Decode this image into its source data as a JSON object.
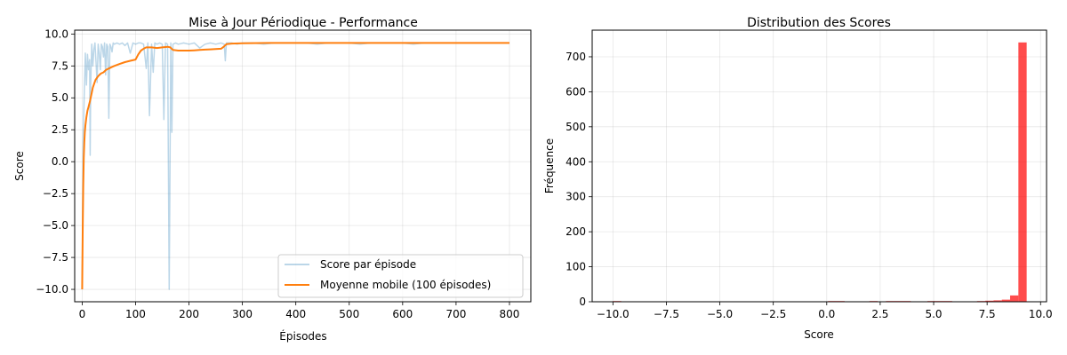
{
  "chart_data": [
    {
      "type": "line",
      "title": "Mise à Jour Périodique - Performance",
      "xlabel": "Épisodes",
      "ylabel": "Score",
      "xlim": [
        -14,
        840
      ],
      "ylim": [
        -10.97,
        10.3
      ],
      "xticks": [
        0,
        100,
        200,
        300,
        400,
        500,
        600,
        700,
        800
      ],
      "yticks": [
        -10.0,
        -7.5,
        -5.0,
        -2.5,
        0.0,
        2.5,
        5.0,
        7.5,
        10.0
      ],
      "ytick_labels": [
        "−10.0",
        "−7.5",
        "−5.0",
        "−2.5",
        "0.0",
        "2.5",
        "5.0",
        "7.5",
        "10.0"
      ],
      "grid": true,
      "legend": "lower-right",
      "series": [
        {
          "name": "Score par épisode",
          "color": "#1f77b4",
          "alpha": 0.3,
          "style": "raw",
          "x": [
            0,
            2,
            4,
            6,
            8,
            10,
            12,
            14,
            15,
            16,
            18,
            20,
            22,
            24,
            26,
            28,
            30,
            32,
            34,
            36,
            38,
            40,
            42,
            44,
            46,
            48,
            50,
            52,
            54,
            56,
            58,
            60,
            65,
            70,
            75,
            80,
            85,
            90,
            95,
            100,
            105,
            110,
            115,
            120,
            123,
            126,
            130,
            133,
            136,
            140,
            145,
            150,
            153,
            156,
            160,
            163,
            166,
            168,
            170,
            175,
            180,
            190,
            200,
            210,
            220,
            230,
            240,
            250,
            260,
            266,
            268,
            270,
            280,
            290,
            300,
            320,
            340,
            360,
            380,
            400,
            420,
            440,
            460,
            480,
            500,
            520,
            540,
            560,
            580,
            600,
            620,
            640,
            660,
            680,
            700,
            720,
            740,
            760,
            780,
            800
          ],
          "y": [
            -10.0,
            2.0,
            5.5,
            8.5,
            6.0,
            8.4,
            7.2,
            8.0,
            0.5,
            6.0,
            9.2,
            7.5,
            8.8,
            9.3,
            7.8,
            6.2,
            9.2,
            8.5,
            7.2,
            9.2,
            9.0,
            8.2,
            9.3,
            6.8,
            9.2,
            9.0,
            3.4,
            9.2,
            9.0,
            8.6,
            9.3,
            9.2,
            9.3,
            9.2,
            9.3,
            9.1,
            9.3,
            8.5,
            9.3,
            9.2,
            9.3,
            9.3,
            9.2,
            7.3,
            9.3,
            3.6,
            9.2,
            7.0,
            9.3,
            9.2,
            9.3,
            9.2,
            3.3,
            9.3,
            9.2,
            -10.0,
            9.3,
            2.3,
            9.2,
            9.3,
            9.2,
            9.3,
            9.2,
            9.3,
            8.9,
            9.2,
            9.3,
            9.2,
            9.3,
            9.2,
            7.9,
            9.3,
            9.3,
            9.2,
            9.3,
            9.3,
            9.2,
            9.3,
            9.3,
            9.3,
            9.3,
            9.2,
            9.3,
            9.3,
            9.3,
            9.2,
            9.3,
            9.3,
            9.3,
            9.3,
            9.2,
            9.3,
            9.3,
            9.3,
            9.3,
            9.3,
            9.3,
            9.3,
            9.3,
            9.3
          ]
        },
        {
          "name": "Moyenne mobile (100 épisodes)",
          "color": "#ff7f0e",
          "alpha": 1,
          "style": "smooth",
          "x": [
            0,
            1,
            2,
            3,
            4,
            5,
            6,
            8,
            10,
            12,
            15,
            18,
            20,
            25,
            30,
            35,
            40,
            45,
            50,
            55,
            60,
            70,
            80,
            90,
            100,
            105,
            110,
            115,
            120,
            130,
            140,
            150,
            160,
            165,
            170,
            180,
            190,
            200,
            210,
            220,
            230,
            240,
            250,
            260,
            265,
            270,
            280,
            300,
            350,
            400,
            500,
            600,
            700,
            800
          ],
          "y": [
            -10.0,
            -5.5,
            -2.0,
            0.3,
            1.5,
            2.3,
            2.8,
            3.5,
            4.0,
            4.3,
            4.8,
            5.4,
            5.8,
            6.4,
            6.7,
            6.9,
            7.0,
            7.2,
            7.3,
            7.4,
            7.5,
            7.65,
            7.8,
            7.9,
            8.0,
            8.4,
            8.7,
            8.85,
            8.95,
            8.95,
            8.9,
            8.95,
            9.0,
            8.95,
            8.75,
            8.7,
            8.7,
            8.7,
            8.72,
            8.75,
            8.78,
            8.8,
            8.82,
            8.85,
            9.0,
            9.2,
            9.25,
            9.28,
            9.3,
            9.3,
            9.3,
            9.3,
            9.3,
            9.3
          ]
        }
      ]
    },
    {
      "type": "bar",
      "subtype": "histogram",
      "title": "Distribution des Scores",
      "xlabel": "Score",
      "ylabel": "Fréquence",
      "xlim": [
        -10.97,
        10.28
      ],
      "ylim": [
        0,
        776
      ],
      "xticks": [
        -10.0,
        -7.5,
        -5.0,
        -2.5,
        0.0,
        2.5,
        5.0,
        7.5,
        10.0
      ],
      "xtick_labels": [
        "−10.0",
        "−7.5",
        "−5.0",
        "−2.5",
        "0.0",
        "2.5",
        "5.0",
        "7.5",
        "10.0"
      ],
      "yticks": [
        0,
        100,
        200,
        300,
        400,
        500,
        600,
        700
      ],
      "grid": true,
      "color": "#ff0000",
      "alpha": 0.7,
      "bin_edges": [
        -10.0,
        -9.613,
        -9.226,
        -8.839,
        -8.452,
        -8.065,
        -7.678,
        -7.291,
        -6.904,
        -6.517,
        -6.13,
        -5.743,
        -5.356,
        -4.969,
        -4.582,
        -4.195,
        -3.808,
        -3.421,
        -3.034,
        -2.647,
        -2.26,
        -1.873,
        -1.486,
        -1.099,
        -0.712,
        -0.325,
        0.062,
        0.449,
        0.836,
        1.223,
        1.61,
        1.997,
        2.384,
        2.771,
        3.158,
        3.545,
        3.932,
        4.319,
        4.706,
        5.093,
        5.48,
        5.867,
        6.254,
        6.641,
        7.028,
        7.415,
        7.802,
        8.189,
        8.576,
        8.963,
        9.35
      ],
      "counts": [
        2,
        0,
        0,
        0,
        0,
        0,
        0,
        0,
        0,
        0,
        0,
        0,
        0,
        0,
        0,
        0,
        0,
        0,
        0,
        0,
        0,
        0,
        0,
        0,
        0,
        0,
        2,
        2,
        0,
        0,
        0,
        2,
        1,
        2,
        2,
        2,
        0,
        0,
        2,
        2,
        2,
        1,
        1,
        1,
        2,
        3,
        4,
        6,
        18,
        741
      ]
    }
  ]
}
